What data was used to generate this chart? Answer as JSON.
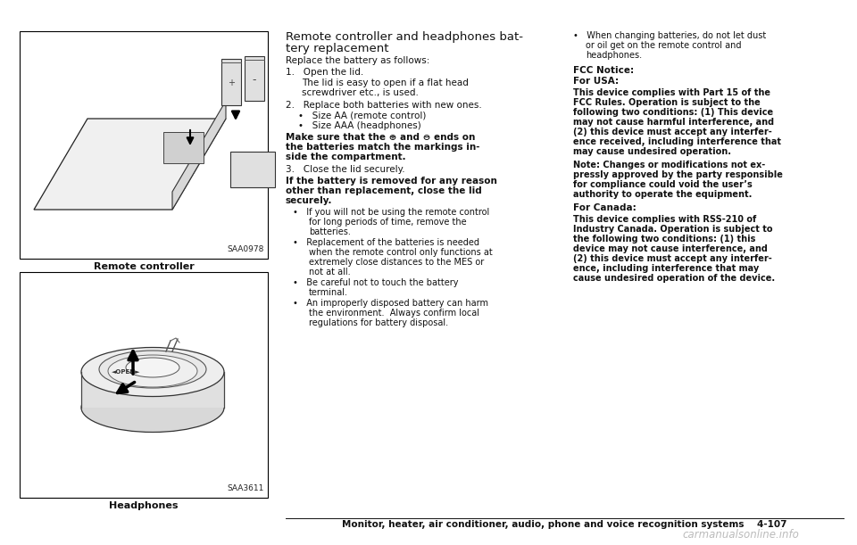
{
  "bg_color": "#ffffff",
  "page_width": 9.6,
  "page_height": 6.11,
  "image1_label": "SAA0978",
  "image1_caption": "Remote controller",
  "image2_label": "SAA3611",
  "image2_caption": "Headphones",
  "footer": "Monitor, heater, air conditioner, audio, phone and voice recognition systems    4-107",
  "watermark": "carmanualsonline.info"
}
